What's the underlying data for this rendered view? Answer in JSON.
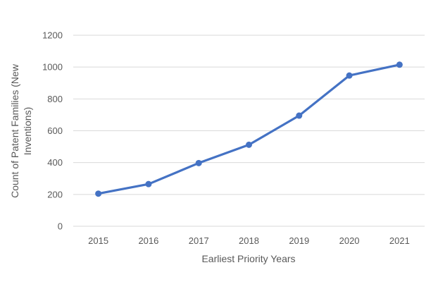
{
  "chart_data": {
    "type": "line",
    "title": "",
    "xlabel": "Earliest Priority Years",
    "ylabel_lines": [
      "Count of Patent Families (New",
      "Inventions)"
    ],
    "categories": [
      "2015",
      "2016",
      "2017",
      "2018",
      "2019",
      "2020",
      "2021"
    ],
    "series": [
      {
        "values": [
          205,
          265,
          397,
          512,
          695,
          947,
          1015
        ]
      }
    ],
    "ylim": [
      0,
      1200
    ],
    "yticks": [
      0,
      200,
      400,
      600,
      800,
      1000,
      1200
    ],
    "grid": true,
    "legend": "none",
    "colors": {
      "series": "#4472c4",
      "grid": "#d9d9d9",
      "text": "#595959"
    }
  }
}
